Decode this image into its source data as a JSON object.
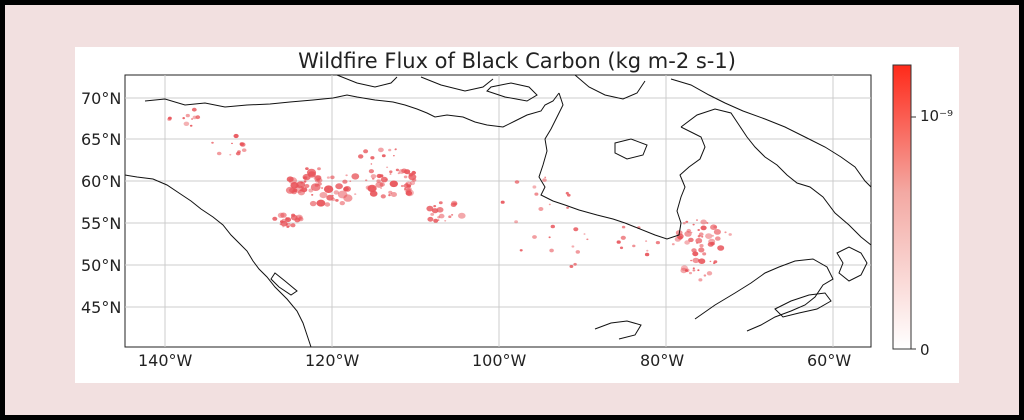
{
  "title": "Wildfire Flux of Black Carbon (kg m-2 s-1)",
  "lat_ticks": [
    "70°N",
    "65°N",
    "60°N",
    "55°N",
    "50°N",
    "45°N"
  ],
  "lon_ticks": [
    "140°W",
    "120°W",
    "100°W",
    "80°W",
    "60°W"
  ],
  "colorbar": {
    "max_label": "10⁻⁹",
    "min_label": "0",
    "color_high": "#ff2a1a",
    "color_low": "#ffffff"
  },
  "colors": {
    "outline": "#111111",
    "fire": "#e8545a",
    "grid": "#cccccc",
    "frame": "#f2e0e0"
  }
}
